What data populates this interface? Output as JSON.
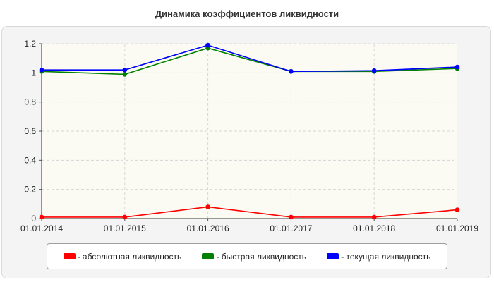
{
  "chart_data": {
    "type": "line",
    "title": "Динамика коэффициентов ликвидности",
    "x": [
      "01.01.2014",
      "01.01.2015",
      "01.01.2016",
      "01.01.2017",
      "01.01.2018",
      "01.01.2019"
    ],
    "ylim": [
      0,
      1.2
    ],
    "yticks": [
      0,
      0.2,
      0.4,
      0.6,
      0.8,
      1,
      1.2
    ],
    "grid": true,
    "legend_position": "bottom",
    "series": [
      {
        "name": "- абсолютная ликвидность",
        "color": "#ff0000",
        "values": [
          0.01,
          0.01,
          0.08,
          0.01,
          0.01,
          0.06
        ]
      },
      {
        "name": "- быстрая ликвидность",
        "color": "#008000",
        "values": [
          1.01,
          0.99,
          1.17,
          1.01,
          1.01,
          1.03
        ]
      },
      {
        "name": "- текущая ликвидность",
        "color": "#0000ff",
        "values": [
          1.02,
          1.02,
          1.19,
          1.01,
          1.015,
          1.04
        ]
      }
    ]
  }
}
